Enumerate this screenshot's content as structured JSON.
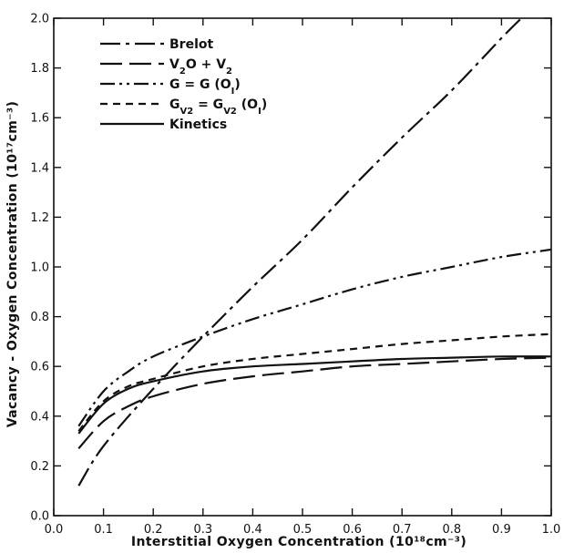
{
  "chart_data": {
    "type": "line",
    "xlabel": "Interstitial Oxygen Concentration (10¹⁸cm⁻³)",
    "ylabel": "Vacancy - Oxygen Concentration (10¹⁷cm⁻³)",
    "xlim": [
      0.0,
      1.0
    ],
    "ylim": [
      0.0,
      2.0
    ],
    "x_ticks": [
      0.0,
      0.1,
      0.2,
      0.3,
      0.4,
      0.5,
      0.6,
      0.7,
      0.8,
      0.9,
      1.0
    ],
    "x_tick_labels": [
      "0.0",
      "0.1",
      "0.2",
      "0.3",
      "0.4",
      "0.5",
      "0.6",
      "0.7",
      "0.8",
      "0.9",
      "1.0"
    ],
    "y_ticks": [
      0.0,
      0.2,
      0.4,
      0.6,
      0.8,
      1.0,
      1.2,
      1.4,
      1.6,
      1.8,
      2.0
    ],
    "y_tick_labels": [
      "0.0",
      "0.2",
      "0.4",
      "0.6",
      "0.8",
      "1.0",
      "1.2",
      "1.4",
      "1.6",
      "1.8",
      "2.0"
    ],
    "grid": false,
    "legend_position": "top-left",
    "series": [
      {
        "name": "Brelot",
        "line_style": "dash-dot",
        "x": [
          0.05,
          0.1,
          0.2,
          0.3,
          0.4,
          0.5,
          0.6,
          0.7,
          0.8,
          0.9,
          0.94
        ],
        "y": [
          0.12,
          0.28,
          0.51,
          0.72,
          0.92,
          1.11,
          1.32,
          1.52,
          1.71,
          1.92,
          2.0
        ]
      },
      {
        "name": "V₂O + V₂",
        "line_style": "long-dash",
        "x": [
          0.05,
          0.1,
          0.15,
          0.2,
          0.3,
          0.4,
          0.5,
          0.6,
          0.7,
          0.8,
          0.9,
          1.0
        ],
        "y": [
          0.27,
          0.38,
          0.44,
          0.48,
          0.53,
          0.56,
          0.58,
          0.6,
          0.61,
          0.62,
          0.63,
          0.635
        ]
      },
      {
        "name": "G = G (O_I)",
        "line_style": "dash-dot-dot",
        "x": [
          0.05,
          0.1,
          0.15,
          0.2,
          0.3,
          0.4,
          0.5,
          0.6,
          0.7,
          0.8,
          0.9,
          1.0
        ],
        "y": [
          0.36,
          0.5,
          0.58,
          0.64,
          0.72,
          0.79,
          0.85,
          0.91,
          0.96,
          1.0,
          1.04,
          1.07
        ]
      },
      {
        "name": "G_V2 = G_V2 (O_I)",
        "line_style": "short-dash",
        "x": [
          0.05,
          0.1,
          0.15,
          0.2,
          0.3,
          0.4,
          0.5,
          0.6,
          0.7,
          0.8,
          0.9,
          1.0
        ],
        "y": [
          0.34,
          0.46,
          0.52,
          0.55,
          0.6,
          0.63,
          0.65,
          0.67,
          0.69,
          0.705,
          0.72,
          0.73
        ]
      },
      {
        "name": "Kinetics",
        "line_style": "solid",
        "x": [
          0.05,
          0.1,
          0.15,
          0.2,
          0.3,
          0.4,
          0.5,
          0.6,
          0.7,
          0.8,
          0.9,
          1.0
        ],
        "y": [
          0.33,
          0.45,
          0.51,
          0.54,
          0.58,
          0.6,
          0.61,
          0.62,
          0.63,
          0.635,
          0.64,
          0.64
        ]
      }
    ]
  }
}
